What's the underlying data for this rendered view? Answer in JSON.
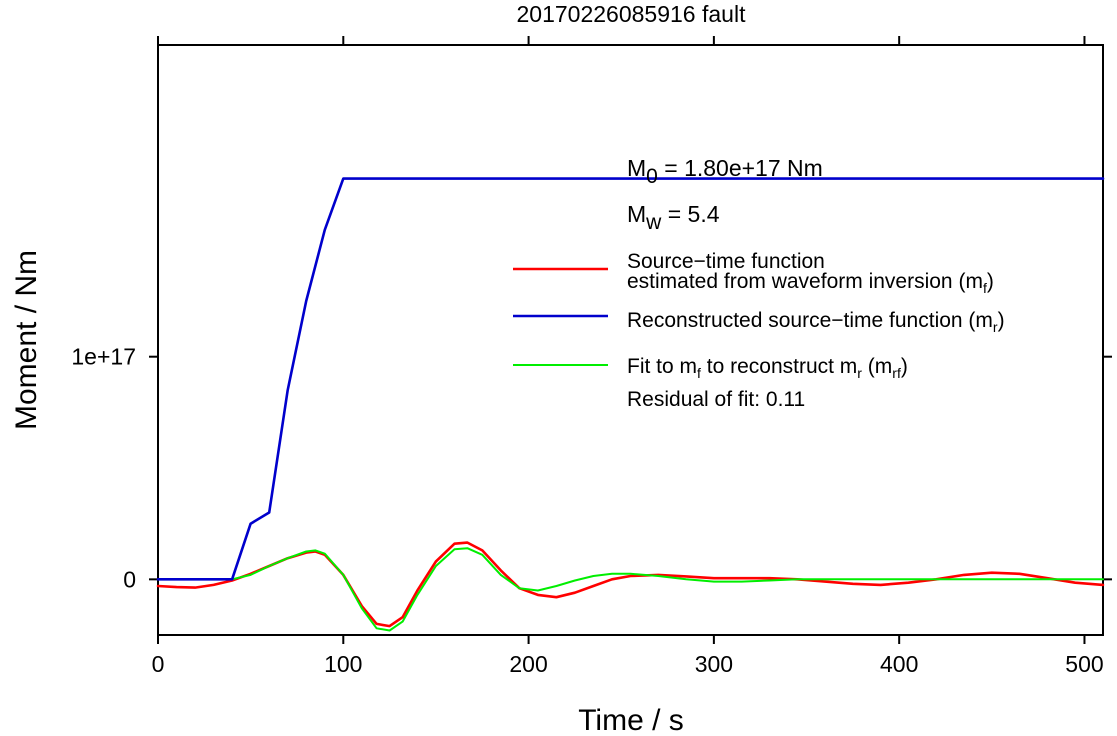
{
  "chart_data": {
    "type": "line",
    "title": "20170226085916 fault",
    "xlabel": "Time / s",
    "ylabel": "Moment / Nm",
    "xlim": [
      0,
      510
    ],
    "ylim": [
      -2.5e+16,
      2.4e+17
    ],
    "x_ticks": [
      0,
      100,
      200,
      300,
      400,
      500
    ],
    "x_tick_labels": [
      "0",
      "100",
      "200",
      "300",
      "400",
      "500"
    ],
    "y_ticks": [
      0,
      1e+17
    ],
    "y_tick_labels": [
      "0",
      "1e+17"
    ],
    "grid": false,
    "legend_position": "right",
    "annotations": {
      "m0": {
        "symbol": "M",
        "sub": "0",
        "text": " = 1.80e+17 Nm"
      },
      "mw": {
        "symbol": "M",
        "sub": "w",
        "text": " = 5.4"
      },
      "residual": "Residual of fit: 0.11"
    },
    "series": [
      {
        "name": "Source-time function estimated from waveform inversion (m_f)",
        "legend_line1": "Source−time function",
        "legend_line2": "estimated from waveform inversion (m",
        "legend_sub": "f",
        "legend_tail": ")",
        "color": "#ff0000",
        "x": [
          0,
          10,
          20,
          30,
          40,
          50,
          60,
          70,
          80,
          85,
          90,
          100,
          110,
          118,
          125,
          132,
          140,
          150,
          160,
          167,
          175,
          185,
          195,
          205,
          215,
          225,
          235,
          245,
          255,
          270,
          285,
          300,
          315,
          330,
          345,
          360,
          375,
          390,
          405,
          420,
          435,
          450,
          465,
          480,
          495,
          510
        ],
        "y": [
          -3000000000000000.0,
          -3500000000000000.0,
          -3700000000000000.0,
          -2500000000000000.0,
          -500000000000000.0,
          2500000000000000.0,
          6000000000000000.0,
          9500000000000000.0,
          1.2e+16,
          1.25e+16,
          1.1e+16,
          2000000000000000.0,
          -1.2e+16,
          -2e+16,
          -2.1e+16,
          -1.7e+16,
          -5000000000000000.0,
          8000000000000000.0,
          1.6e+16,
          1.65e+16,
          1.3e+16,
          4000000000000000.0,
          -4000000000000000.0,
          -7000000000000000.0,
          -8000000000000000.0,
          -6000000000000000.0,
          -3000000000000000.0,
          0,
          1500000000000000.0,
          2000000000000000.0,
          1300000000000000.0,
          500000000000000.0,
          500000000000000.0,
          500000000000000.0,
          0,
          -1000000000000000.0,
          -2000000000000000.0,
          -2500000000000000.0,
          -1500000000000000.0,
          0,
          2000000000000000.0,
          3000000000000000.0,
          2500000000000000.0,
          500000000000000.0,
          -1500000000000000.0,
          -2500000000000000.0
        ]
      },
      {
        "name": "Reconstructed source-time function (m_r)",
        "legend_line1": "Reconstructed source−time function (m",
        "legend_sub": "r",
        "legend_tail": ")",
        "color": "#0000cc",
        "x": [
          0,
          40,
          50,
          60,
          70,
          80,
          90,
          100,
          510
        ],
        "y": [
          0,
          0,
          2.5e+16,
          3e+16,
          8.5e+16,
          1.25e+17,
          1.57e+17,
          1.8e+17,
          1.8e+17
        ]
      },
      {
        "name": "Fit to m_f to reconstruct m_r (m_rf)",
        "legend_line1a": "Fit to m",
        "legend_sub1": "f",
        "legend_line1b": " to reconstruct m",
        "legend_sub2": "r",
        "legend_line1c": " (m",
        "legend_sub3": "rf",
        "legend_tail": ")",
        "color": "#00ee00",
        "x": [
          0,
          40,
          50,
          60,
          70,
          80,
          85,
          90,
          100,
          110,
          118,
          125,
          132,
          140,
          150,
          160,
          167,
          175,
          185,
          195,
          205,
          215,
          225,
          235,
          245,
          255,
          270,
          285,
          300,
          315,
          330,
          345,
          360,
          380,
          400,
          420,
          450,
          480,
          510
        ],
        "y": [
          0,
          0,
          2000000000000000.0,
          6000000000000000.0,
          9500000000000000.0,
          1.25e+16,
          1.3e+16,
          1.15e+16,
          2000000000000000.0,
          -1.3e+16,
          -2.2e+16,
          -2.3e+16,
          -1.9e+16,
          -7000000000000000.0,
          6000000000000000.0,
          1.35e+16,
          1.4e+16,
          1.1e+16,
          2000000000000000.0,
          -4000000000000000.0,
          -5000000000000000.0,
          -3000000000000000.0,
          -500000000000000.0,
          1500000000000000.0,
          2500000000000000.0,
          2500000000000000.0,
          1500000000000000.0,
          0,
          -1000000000000000.0,
          -1000000000000000.0,
          -500000000000000.0,
          0,
          0,
          0,
          0,
          0,
          0,
          0,
          0
        ]
      }
    ]
  }
}
